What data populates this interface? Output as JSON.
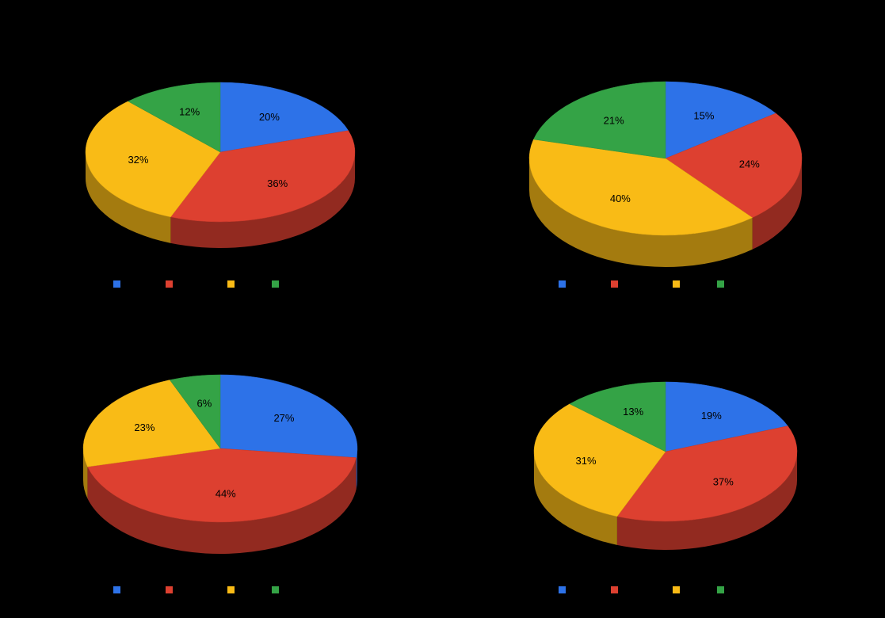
{
  "background": "#000000",
  "palette": {
    "blue": "#2d72e8",
    "red": "#dd4030",
    "yellow": "#f9bb16",
    "green": "#34a346"
  },
  "wall_shade_factor": 0.66,
  "chart_data": [
    {
      "type": "pie",
      "style": "3d",
      "position": "top-left",
      "slices": [
        {
          "label": "20%",
          "value": 20,
          "color": "blue"
        },
        {
          "label": "36%",
          "value": 36,
          "color": "red"
        },
        {
          "label": "32%",
          "value": 32,
          "color": "yellow"
        },
        {
          "label": "12%",
          "value": 12,
          "color": "green"
        }
      ],
      "legend_colors": [
        "blue",
        "red",
        "yellow",
        "green"
      ]
    },
    {
      "type": "pie",
      "style": "3d",
      "position": "top-right",
      "slices": [
        {
          "label": "15%",
          "value": 15,
          "color": "blue"
        },
        {
          "label": "24%",
          "value": 24,
          "color": "red"
        },
        {
          "label": "40%",
          "value": 40,
          "color": "yellow"
        },
        {
          "label": "21%",
          "value": 21,
          "color": "green"
        }
      ],
      "legend_colors": [
        "blue",
        "red",
        "yellow",
        "green"
      ]
    },
    {
      "type": "pie",
      "style": "3d",
      "position": "bottom-left",
      "slices": [
        {
          "label": "27%",
          "value": 27,
          "color": "blue"
        },
        {
          "label": "44%",
          "value": 44,
          "color": "red"
        },
        {
          "label": "23%",
          "value": 23,
          "color": "yellow"
        },
        {
          "label": "6%",
          "value": 6,
          "color": "green"
        }
      ],
      "legend_colors": [
        "blue",
        "red",
        "yellow",
        "green"
      ]
    },
    {
      "type": "pie",
      "style": "3d",
      "position": "bottom-right",
      "slices": [
        {
          "label": "19%",
          "value": 19,
          "color": "blue"
        },
        {
          "label": "37%",
          "value": 37,
          "color": "red"
        },
        {
          "label": "31%",
          "value": 31,
          "color": "yellow"
        },
        {
          "label": "13%",
          "value": 13,
          "color": "green"
        }
      ],
      "legend_colors": [
        "blue",
        "red",
        "yellow",
        "green"
      ]
    }
  ]
}
